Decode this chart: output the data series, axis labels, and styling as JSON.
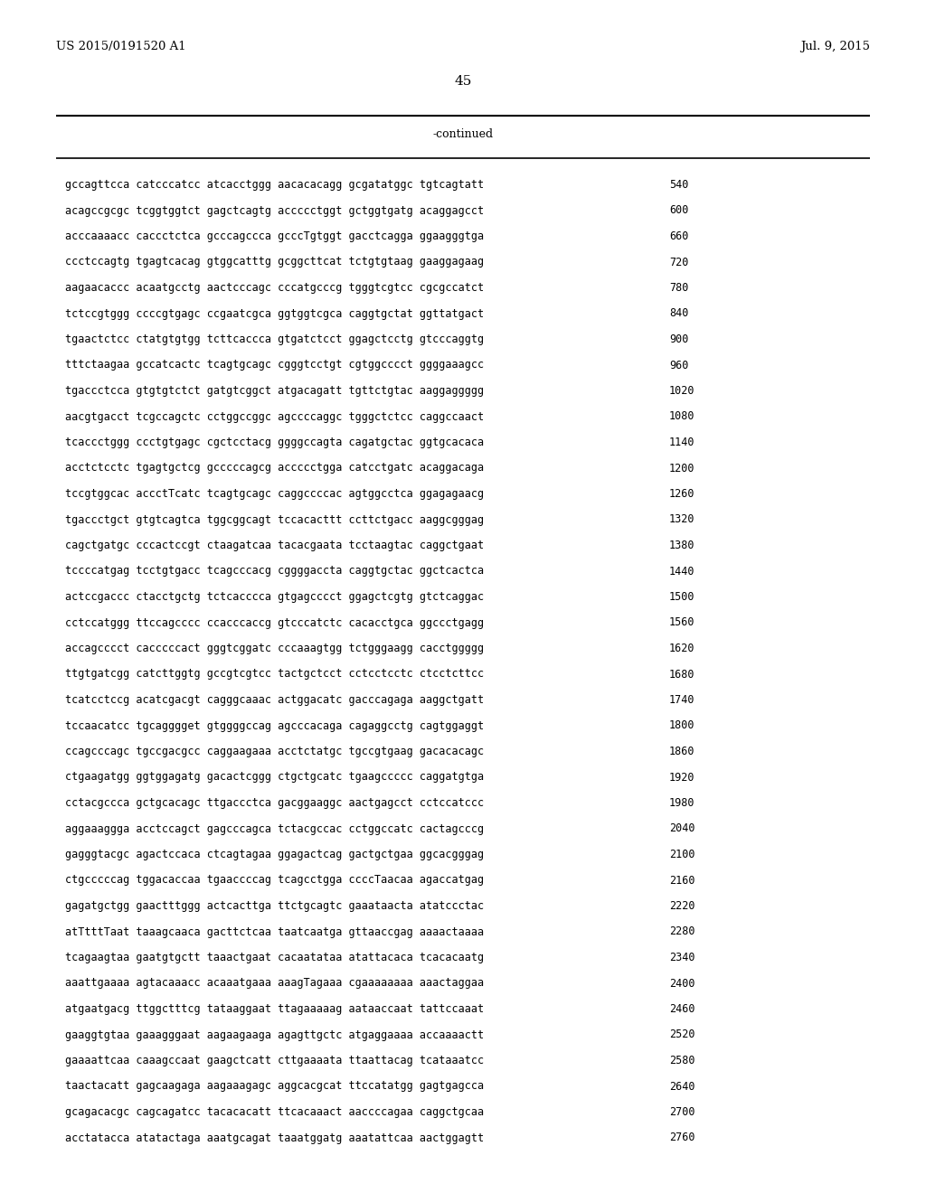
{
  "header_left": "US 2015/0191520 A1",
  "header_right": "Jul. 9, 2015",
  "page_number": "45",
  "continued_label": "-continued",
  "background_color": "#ffffff",
  "text_color": "#000000",
  "sequences": [
    {
      "seq": "gccagttcca catcccatcc atcacctggg aacacacagg gcgatatggc tgtcagtatt",
      "num": "540"
    },
    {
      "seq": "acagccgcgc tcggtggtct gagctcagtg accccctggt gctggtgatg acaggagcct",
      "num": "600"
    },
    {
      "seq": "acccaaaacc caccctctca gcccagccca gcccTgtggt gacctcagga ggaagggtga",
      "num": "660"
    },
    {
      "seq": "ccctccagtg tgagtcacag gtggcatttg gcggcttcat tctgtgtaag gaaggagaag",
      "num": "720"
    },
    {
      "seq": "aagaacaccc acaatgcctg aactcccagc cccatgcccg tgggtcgtcc cgcgccatct",
      "num": "780"
    },
    {
      "seq": "tctccgtggg ccccgtgagc ccgaatcgca ggtggtcgca caggtgctat ggttatgact",
      "num": "840"
    },
    {
      "seq": "tgaactctcc ctatgtgtgg tcttcaccca gtgatctcct ggagctcctg gtcccaggtg",
      "num": "900"
    },
    {
      "seq": "tttctaagaa gccatcactc tcagtgcagc cgggtcctgt cgtggcccct ggggaaagcc",
      "num": "960"
    },
    {
      "seq": "tgaccctcca gtgtgtctct gatgtcggct atgacagatt tgttctgtac aaggaggggg",
      "num": "1020"
    },
    {
      "seq": "aacgtgacct tcgccagctc cctggccggc agccccaggc tgggctctcc caggccaact",
      "num": "1080"
    },
    {
      "seq": "tcaccctggg ccctgtgagc cgctcctacg ggggccagta cagatgctac ggtgcacaca",
      "num": "1140"
    },
    {
      "seq": "acctctcctc tgagtgctcg gcccccagcg accccctgga catcctgatc acaggacaga",
      "num": "1200"
    },
    {
      "seq": "tccgtggcac accctTcatc tcagtgcagc caggccccac agtggcctca ggagagaacg",
      "num": "1260"
    },
    {
      "seq": "tgaccctgct gtgtcagtca tggcggcagt tccacacttt ccttctgacc aaggcgggag",
      "num": "1320"
    },
    {
      "seq": "cagctgatgc cccactccgt ctaagatcaa tacacgaata tcctaagtac caggctgaat",
      "num": "1380"
    },
    {
      "seq": "tccccatgag tcctgtgacc tcagcccacg cggggaccta caggtgctac ggctcactca",
      "num": "1440"
    },
    {
      "seq": "actccgaccc ctacctgctg tctcacccca gtgagcccct ggagctcgtg gtctcaggac",
      "num": "1500"
    },
    {
      "seq": "cctccatggg ttccagcccc ccacccaccg gtcccatctc cacacctgca ggccctgagg",
      "num": "1560"
    },
    {
      "seq": "accagcccct cacccccact gggtcggatc cccaaagtgg tctgggaagg cacctggggg",
      "num": "1620"
    },
    {
      "seq": "ttgtgatcgg catcttggtg gccgtcgtcc tactgctcct cctcctcctc ctcctcttcc",
      "num": "1680"
    },
    {
      "seq": "tcatcctccg acatcgacgt cagggcaaac actggacatc gacccagaga aaggctgatt",
      "num": "1740"
    },
    {
      "seq": "tccaacatcc tgcagggget gtggggccag agcccacaga cagaggcctg cagtggaggt",
      "num": "1800"
    },
    {
      "seq": "ccagcccagc tgccgacgcc caggaagaaa acctctatgc tgccgtgaag gacacacagc",
      "num": "1860"
    },
    {
      "seq": "ctgaagatgg ggtggagatg gacactcggg ctgctgcatc tgaagccccc caggatgtga",
      "num": "1920"
    },
    {
      "seq": "cctacgccca gctgcacagc ttgaccctca gacggaaggc aactgagcct cctccatccc",
      "num": "1980"
    },
    {
      "seq": "aggaaaggga acctccagct gagcccagca tctacgccac cctggccatc cactagcccg",
      "num": "2040"
    },
    {
      "seq": "gagggtacgc agactccaca ctcagtagaa ggagactcag gactgctgaa ggcacgggag",
      "num": "2100"
    },
    {
      "seq": "ctgcccccag tggacaccaa tgaaccccag tcagcctgga ccccTaacaa agaccatgag",
      "num": "2160"
    },
    {
      "seq": "gagatgctgg gaactttggg actcacttga ttctgcagtc gaaataacta atatccctac",
      "num": "2220"
    },
    {
      "seq": "atTtttTaat taaagcaaca gacttctcaa taatcaatga gttaaccgag aaaactaaaa",
      "num": "2280"
    },
    {
      "seq": "tcagaagtaa gaatgtgctt taaactgaat cacaatataa atattacaca tcacacaatg",
      "num": "2340"
    },
    {
      "seq": "aaattgaaaa agtacaaacc acaaatgaaa aaagTagaaa cgaaaaaaaa aaactaggaa",
      "num": "2400"
    },
    {
      "seq": "atgaatgacg ttggctttcg tataaggaat ttagaaaaag aataaccaat tattccaaat",
      "num": "2460"
    },
    {
      "seq": "gaaggtgtaa gaaagggaat aagaagaaga agagttgctc atgaggaaaa accaaaactt",
      "num": "2520"
    },
    {
      "seq": "gaaaattcaa caaagccaat gaagctcatt cttgaaaata ttaattacag tcataaatcc",
      "num": "2580"
    },
    {
      "seq": "taactacatt gagcaagaga aagaaagagc aggcacgcat ttccatatgg gagtgagcca",
      "num": "2640"
    },
    {
      "seq": "gcagacacgc cagcagatcc tacacacatt ttcacaaact aaccccagaa caggctgcaa",
      "num": "2700"
    },
    {
      "seq": "acctatacca atatactaga aaatgcagat taaatggatg aaatattcaa aactggagtt",
      "num": "2760"
    }
  ]
}
